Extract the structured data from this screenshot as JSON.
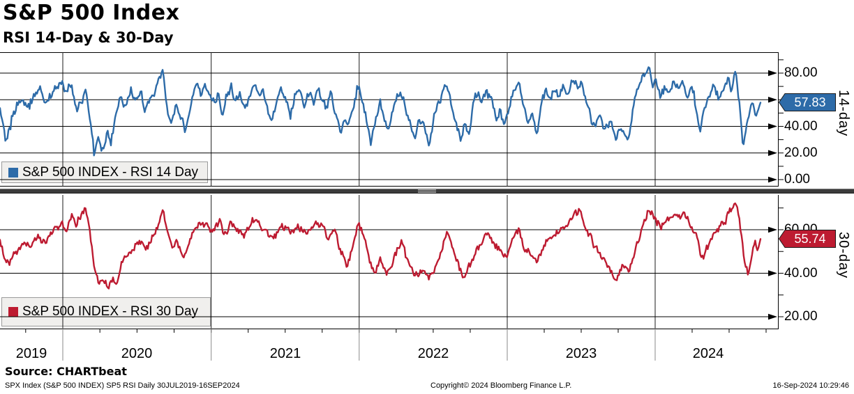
{
  "header": {
    "title": "S&P 500 Index",
    "subtitle": "RSI 14-Day & 30-Day"
  },
  "source_line": "Source: CHARTbeat",
  "footer": {
    "left": "SPX Index (S&P 500 INDEX) SP5 RSI  Daily 30JUL2019-16SEP2024",
    "center": "Copyright© 2024 Bloomberg Finance L.P.",
    "right": "16-Sep-2024 10:29:46"
  },
  "chart_data": {
    "type": "line",
    "title": "S&P 500 Index",
    "subtitle": "RSI 14-Day & 30-Day",
    "x_axis": {
      "start": "30JUL2019",
      "end": "16SEP2024",
      "year_labels": [
        "2019",
        "2020",
        "2021",
        "2022",
        "2023",
        "2024"
      ]
    },
    "grid": true,
    "legend_position": "bottom-left-inside",
    "panels": [
      {
        "id": "rsi14",
        "axis_label": "14-day",
        "legend": "S&P 500 INDEX - RSI 14 Day",
        "color": "#2d6ba8",
        "last_value": "57.83",
        "ylim": [
          -5.6,
          95.7
        ],
        "y_ticks": [
          {
            "v": 80,
            "label": "80.00"
          },
          {
            "v": 60,
            "label": "60.00"
          },
          {
            "v": 40,
            "label": "40.00"
          },
          {
            "v": 20,
            "label": "20.00"
          },
          {
            "v": 0,
            "label": "0.00"
          }
        ],
        "y_minor_ticks": [
          90,
          70,
          50,
          30,
          10
        ],
        "points": [
          [
            0,
            50
          ],
          [
            0.004,
            38
          ],
          [
            0.008,
            26
          ],
          [
            0.015,
            45
          ],
          [
            0.022,
            56
          ],
          [
            0.03,
            62
          ],
          [
            0.038,
            55
          ],
          [
            0.045,
            65
          ],
          [
            0.052,
            70
          ],
          [
            0.058,
            58
          ],
          [
            0.065,
            62
          ],
          [
            0.072,
            68
          ],
          [
            0.08,
            72
          ],
          [
            0.088,
            64
          ],
          [
            0.094,
            73
          ],
          [
            0.101,
            48
          ],
          [
            0.108,
            60
          ],
          [
            0.113,
            68
          ],
          [
            0.119,
            42
          ],
          [
            0.124,
            18
          ],
          [
            0.129,
            32
          ],
          [
            0.135,
            22
          ],
          [
            0.141,
            36
          ],
          [
            0.146,
            28
          ],
          [
            0.152,
            50
          ],
          [
            0.158,
            62
          ],
          [
            0.165,
            55
          ],
          [
            0.172,
            65
          ],
          [
            0.178,
            58
          ],
          [
            0.185,
            68
          ],
          [
            0.19,
            52
          ],
          [
            0.196,
            60
          ],
          [
            0.203,
            66
          ],
          [
            0.21,
            78
          ],
          [
            0.214,
            85
          ],
          [
            0.219,
            58
          ],
          [
            0.225,
            42
          ],
          [
            0.231,
            55
          ],
          [
            0.238,
            47
          ],
          [
            0.244,
            38
          ],
          [
            0.252,
            60
          ],
          [
            0.258,
            70
          ],
          [
            0.264,
            64
          ],
          [
            0.27,
            70
          ],
          [
            0.276,
            62
          ],
          [
            0.282,
            55
          ],
          [
            0.287,
            68
          ],
          [
            0.292,
            48
          ],
          [
            0.298,
            62
          ],
          [
            0.304,
            70
          ],
          [
            0.31,
            58
          ],
          [
            0.316,
            66
          ],
          [
            0.322,
            52
          ],
          [
            0.328,
            60
          ],
          [
            0.334,
            72
          ],
          [
            0.34,
            63
          ],
          [
            0.346,
            68
          ],
          [
            0.352,
            55
          ],
          [
            0.358,
            44
          ],
          [
            0.364,
            60
          ],
          [
            0.37,
            67
          ],
          [
            0.376,
            58
          ],
          [
            0.382,
            48
          ],
          [
            0.388,
            64
          ],
          [
            0.394,
            68
          ],
          [
            0.4,
            55
          ],
          [
            0.406,
            65
          ],
          [
            0.412,
            58
          ],
          [
            0.418,
            70
          ],
          [
            0.424,
            60
          ],
          [
            0.43,
            52
          ],
          [
            0.436,
            66
          ],
          [
            0.442,
            48
          ],
          [
            0.448,
            34
          ],
          [
            0.454,
            46
          ],
          [
            0.458,
            38
          ],
          [
            0.464,
            56
          ],
          [
            0.47,
            70
          ],
          [
            0.476,
            62
          ],
          [
            0.481,
            48
          ],
          [
            0.488,
            26
          ],
          [
            0.494,
            44
          ],
          [
            0.5,
            56
          ],
          [
            0.505,
            42
          ],
          [
            0.51,
            34
          ],
          [
            0.516,
            52
          ],
          [
            0.522,
            62
          ],
          [
            0.528,
            66
          ],
          [
            0.534,
            54
          ],
          [
            0.54,
            40
          ],
          [
            0.546,
            30
          ],
          [
            0.552,
            46
          ],
          [
            0.558,
            38
          ],
          [
            0.564,
            27
          ],
          [
            0.57,
            45
          ],
          [
            0.576,
            56
          ],
          [
            0.582,
            66
          ],
          [
            0.588,
            73
          ],
          [
            0.594,
            55
          ],
          [
            0.6,
            40
          ],
          [
            0.606,
            29
          ],
          [
            0.612,
            42
          ],
          [
            0.616,
            33
          ],
          [
            0.622,
            55
          ],
          [
            0.628,
            66
          ],
          [
            0.634,
            58
          ],
          [
            0.64,
            68
          ],
          [
            0.646,
            60
          ],
          [
            0.652,
            44
          ],
          [
            0.658,
            52
          ],
          [
            0.664,
            42
          ],
          [
            0.67,
            55
          ],
          [
            0.676,
            68
          ],
          [
            0.682,
            72
          ],
          [
            0.688,
            56
          ],
          [
            0.694,
            44
          ],
          [
            0.7,
            52
          ],
          [
            0.705,
            32
          ],
          [
            0.711,
            55
          ],
          [
            0.717,
            66
          ],
          [
            0.723,
            60
          ],
          [
            0.729,
            68
          ],
          [
            0.735,
            62
          ],
          [
            0.741,
            70
          ],
          [
            0.747,
            64
          ],
          [
            0.753,
            76
          ],
          [
            0.759,
            68
          ],
          [
            0.765,
            72
          ],
          [
            0.771,
            58
          ],
          [
            0.777,
            48
          ],
          [
            0.783,
            40
          ],
          [
            0.789,
            50
          ],
          [
            0.794,
            36
          ],
          [
            0.801,
            44
          ],
          [
            0.806,
            38
          ],
          [
            0.81,
            30
          ],
          [
            0.816,
            42
          ],
          [
            0.821,
            36
          ],
          [
            0.827,
            33
          ],
          [
            0.834,
            58
          ],
          [
            0.845,
            78
          ],
          [
            0.853,
            86
          ],
          [
            0.858,
            72
          ],
          [
            0.862,
            76
          ],
          [
            0.868,
            64
          ],
          [
            0.874,
            70
          ],
          [
            0.88,
            66
          ],
          [
            0.886,
            72
          ],
          [
            0.892,
            68
          ],
          [
            0.898,
            74
          ],
          [
            0.904,
            64
          ],
          [
            0.91,
            70
          ],
          [
            0.916,
            52
          ],
          [
            0.921,
            38
          ],
          [
            0.927,
            55
          ],
          [
            0.933,
            64
          ],
          [
            0.939,
            70
          ],
          [
            0.945,
            62
          ],
          [
            0.951,
            68
          ],
          [
            0.957,
            74
          ],
          [
            0.962,
            70
          ],
          [
            0.967,
            79
          ],
          [
            0.972,
            60
          ],
          [
            0.977,
            24
          ],
          [
            0.983,
            45
          ],
          [
            0.988,
            60
          ],
          [
            0.991,
            55
          ],
          [
            0.994,
            47
          ],
          [
            1,
            57.83
          ]
        ]
      },
      {
        "id": "rsi30",
        "axis_label": "30-day",
        "legend": "S&P 500 INDEX - RSI 30 Day",
        "color": "#bd1b31",
        "last_value": "55.74",
        "ylim": [
          14.2,
          76.0
        ],
        "y_ticks": [
          {
            "v": 60,
            "label": "60.00"
          },
          {
            "v": 40,
            "label": "40.00"
          },
          {
            "v": 20,
            "label": "20.00"
          }
        ],
        "y_minor_ticks": [
          70,
          50,
          30
        ],
        "points": [
          [
            0,
            55
          ],
          [
            0.006,
            47
          ],
          [
            0.012,
            45
          ],
          [
            0.02,
            50
          ],
          [
            0.03,
            55
          ],
          [
            0.04,
            52
          ],
          [
            0.05,
            57
          ],
          [
            0.06,
            55
          ],
          [
            0.07,
            59
          ],
          [
            0.08,
            62
          ],
          [
            0.088,
            60
          ],
          [
            0.094,
            66
          ],
          [
            0.1,
            62
          ],
          [
            0.106,
            66
          ],
          [
            0.112,
            70
          ],
          [
            0.118,
            60
          ],
          [
            0.124,
            42
          ],
          [
            0.13,
            36
          ],
          [
            0.136,
            38
          ],
          [
            0.142,
            33
          ],
          [
            0.148,
            38
          ],
          [
            0.153,
            35
          ],
          [
            0.16,
            44
          ],
          [
            0.168,
            48
          ],
          [
            0.176,
            52
          ],
          [
            0.184,
            55
          ],
          [
            0.192,
            52
          ],
          [
            0.2,
            57
          ],
          [
            0.208,
            62
          ],
          [
            0.214,
            70
          ],
          [
            0.221,
            58
          ],
          [
            0.227,
            52
          ],
          [
            0.233,
            56
          ],
          [
            0.24,
            47
          ],
          [
            0.248,
            52
          ],
          [
            0.256,
            60
          ],
          [
            0.264,
            63
          ],
          [
            0.272,
            61
          ],
          [
            0.28,
            60
          ],
          [
            0.288,
            64
          ],
          [
            0.296,
            58
          ],
          [
            0.304,
            63
          ],
          [
            0.312,
            60
          ],
          [
            0.32,
            57
          ],
          [
            0.328,
            61
          ],
          [
            0.336,
            66
          ],
          [
            0.344,
            62
          ],
          [
            0.352,
            59
          ],
          [
            0.36,
            55
          ],
          [
            0.368,
            60
          ],
          [
            0.376,
            62
          ],
          [
            0.384,
            58
          ],
          [
            0.392,
            62
          ],
          [
            0.4,
            58
          ],
          [
            0.408,
            61
          ],
          [
            0.416,
            64
          ],
          [
            0.424,
            60
          ],
          [
            0.432,
            57
          ],
          [
            0.44,
            60
          ],
          [
            0.448,
            49
          ],
          [
            0.456,
            45
          ],
          [
            0.464,
            52
          ],
          [
            0.47,
            63
          ],
          [
            0.478,
            58
          ],
          [
            0.486,
            45
          ],
          [
            0.492,
            38
          ],
          [
            0.5,
            45
          ],
          [
            0.508,
            40
          ],
          [
            0.514,
            43
          ],
          [
            0.52,
            50
          ],
          [
            0.528,
            55
          ],
          [
            0.536,
            45
          ],
          [
            0.544,
            40
          ],
          [
            0.55,
            38
          ],
          [
            0.558,
            43
          ],
          [
            0.564,
            38
          ],
          [
            0.572,
            42
          ],
          [
            0.58,
            50
          ],
          [
            0.588,
            59
          ],
          [
            0.596,
            50
          ],
          [
            0.604,
            42
          ],
          [
            0.61,
            39
          ],
          [
            0.618,
            43
          ],
          [
            0.626,
            50
          ],
          [
            0.634,
            55
          ],
          [
            0.642,
            58
          ],
          [
            0.65,
            54
          ],
          [
            0.658,
            50
          ],
          [
            0.666,
            47
          ],
          [
            0.674,
            55
          ],
          [
            0.682,
            61
          ],
          [
            0.69,
            52
          ],
          [
            0.698,
            48
          ],
          [
            0.706,
            45
          ],
          [
            0.714,
            52
          ],
          [
            0.722,
            56
          ],
          [
            0.73,
            58
          ],
          [
            0.738,
            60
          ],
          [
            0.746,
            62
          ],
          [
            0.754,
            66
          ],
          [
            0.762,
            69
          ],
          [
            0.77,
            62
          ],
          [
            0.778,
            55
          ],
          [
            0.786,
            50
          ],
          [
            0.794,
            46
          ],
          [
            0.802,
            42
          ],
          [
            0.81,
            38
          ],
          [
            0.818,
            44
          ],
          [
            0.827,
            40
          ],
          [
            0.836,
            52
          ],
          [
            0.845,
            62
          ],
          [
            0.853,
            70
          ],
          [
            0.86,
            66
          ],
          [
            0.868,
            62
          ],
          [
            0.876,
            64
          ],
          [
            0.884,
            66
          ],
          [
            0.892,
            67
          ],
          [
            0.9,
            68
          ],
          [
            0.908,
            63
          ],
          [
            0.916,
            56
          ],
          [
            0.923,
            47
          ],
          [
            0.93,
            52
          ],
          [
            0.938,
            58
          ],
          [
            0.946,
            61
          ],
          [
            0.954,
            65
          ],
          [
            0.962,
            69
          ],
          [
            0.968,
            73
          ],
          [
            0.975,
            58
          ],
          [
            0.98,
            44
          ],
          [
            0.984,
            40
          ],
          [
            0.989,
            49
          ],
          [
            0.993,
            54
          ],
          [
            0.996,
            50
          ],
          [
            1,
            55.74
          ]
        ]
      }
    ]
  }
}
